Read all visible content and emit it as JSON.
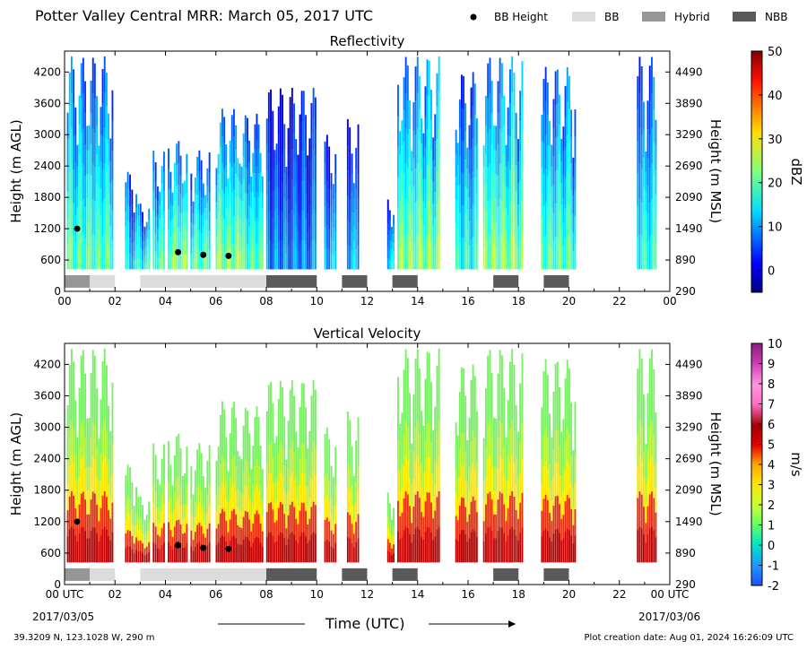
{
  "header": {
    "title": "Potter Valley Central MRR:  March 05, 2017 UTC"
  },
  "legend": {
    "items": [
      {
        "label": "BB Height",
        "kind": "dot",
        "color": "#000000"
      },
      {
        "label": "BB",
        "kind": "box",
        "color": "#dcdcdc"
      },
      {
        "label": "Hybrid",
        "kind": "box",
        "color": "#969696"
      },
      {
        "label": "NBB",
        "kind": "box",
        "color": "#5a5a5a"
      }
    ]
  },
  "footer": {
    "location": "39.3209 N, 123.1028 W, 290 m",
    "created": "Plot creation date: Aug 01, 2024 16:26:09 UTC",
    "xlabel": "Time (UTC)",
    "start_date": "2017/03/05",
    "end_date": "2017/03/06"
  },
  "chart_data": [
    {
      "type": "heatmap",
      "title": "Reflectivity",
      "ylabel": "Height (m AGL)",
      "ylabel_right": "Height (m MSL)",
      "colorbar_label": "dBZ",
      "colorbar_ticks": [
        "0",
        "10",
        "20",
        "30",
        "40",
        "50"
      ],
      "colorbar_range": [
        -5,
        50
      ],
      "x_ticks": [
        "00",
        "02",
        "04",
        "06",
        "08",
        "10",
        "12",
        "14",
        "16",
        "18",
        "20",
        "22",
        "00"
      ],
      "xlim": [
        0,
        24
      ],
      "ylim": [
        0,
        4600
      ],
      "y_ticks_left": [
        "0",
        "600",
        "1200",
        "1800",
        "2400",
        "3000",
        "3600",
        "4200"
      ],
      "y_ticks_right": [
        "290",
        "890",
        "1490",
        "2090",
        "2690",
        "3290",
        "3890",
        "4490"
      ],
      "echo_segments": [
        {
          "start": 0.1,
          "end": 1.95,
          "top": 4500,
          "level": 0.45
        },
        {
          "start": 2.4,
          "end": 2.9,
          "top": 2300,
          "level": 0.35
        },
        {
          "start": 2.9,
          "end": 3.4,
          "top": 1700,
          "level": 0.4
        },
        {
          "start": 3.5,
          "end": 4.0,
          "top": 2700,
          "level": 0.45
        },
        {
          "start": 4.1,
          "end": 4.9,
          "top": 2900,
          "level": 0.5
        },
        {
          "start": 5.0,
          "end": 5.8,
          "top": 2700,
          "level": 0.45
        },
        {
          "start": 6.0,
          "end": 7.0,
          "top": 3500,
          "level": 0.5
        },
        {
          "start": 7.0,
          "end": 7.9,
          "top": 3400,
          "level": 0.45
        },
        {
          "start": 8.0,
          "end": 10.0,
          "top": 3900,
          "level": 0.25
        },
        {
          "start": 10.3,
          "end": 10.8,
          "top": 3000,
          "level": 0.3
        },
        {
          "start": 11.2,
          "end": 11.7,
          "top": 3300,
          "level": 0.3
        },
        {
          "start": 12.8,
          "end": 13.1,
          "top": 1800,
          "level": 0.35
        },
        {
          "start": 13.2,
          "end": 14.9,
          "top": 4500,
          "level": 0.5
        },
        {
          "start": 15.5,
          "end": 16.4,
          "top": 4200,
          "level": 0.4
        },
        {
          "start": 16.6,
          "end": 18.2,
          "top": 4500,
          "level": 0.5
        },
        {
          "start": 18.9,
          "end": 20.3,
          "top": 4300,
          "level": 0.45
        },
        {
          "start": 22.7,
          "end": 23.5,
          "top": 4500,
          "level": 0.4
        }
      ],
      "bb_heights": [
        {
          "x": 0.5,
          "y": 1200
        },
        {
          "x": 4.5,
          "y": 750
        },
        {
          "x": 5.5,
          "y": 700
        },
        {
          "x": 6.5,
          "y": 680
        }
      ],
      "bb_bars": [
        {
          "start": 0.0,
          "end": 1.0,
          "kind": "Hybrid"
        },
        {
          "start": 1.0,
          "end": 2.0,
          "kind": "BB"
        },
        {
          "start": 3.0,
          "end": 8.0,
          "kind": "BB"
        },
        {
          "start": 8.0,
          "end": 10.0,
          "kind": "NBB"
        },
        {
          "start": 11.0,
          "end": 12.0,
          "kind": "NBB"
        },
        {
          "start": 13.0,
          "end": 14.0,
          "kind": "NBB"
        },
        {
          "start": 17.0,
          "end": 18.0,
          "kind": "NBB"
        },
        {
          "start": 19.0,
          "end": 20.0,
          "kind": "NBB"
        }
      ]
    },
    {
      "type": "heatmap",
      "title": "Vertical Velocity",
      "ylabel": "Height (m AGL)",
      "ylabel_right": "Height (m MSL)",
      "colorbar_label": "m/s",
      "colorbar_ticks": [
        "-2",
        "-1",
        "0",
        "1",
        "2",
        "3",
        "4",
        "5",
        "6",
        "7",
        "8",
        "9",
        "10"
      ],
      "colorbar_range": [
        -2,
        10
      ],
      "x_ticks": [
        "00 UTC",
        "02",
        "04",
        "06",
        "08",
        "10",
        "12",
        "14",
        "16",
        "18",
        "20",
        "22",
        "00 UTC"
      ],
      "xlim": [
        0,
        24
      ],
      "ylim": [
        0,
        4600
      ],
      "y_ticks_left": [
        "0",
        "600",
        "1200",
        "1800",
        "2400",
        "3000",
        "3600",
        "4200"
      ],
      "y_ticks_right": [
        "290",
        "890",
        "1490",
        "2090",
        "2690",
        "3290",
        "3890",
        "4490"
      ],
      "echo_segments": [
        {
          "start": 0.1,
          "end": 1.95,
          "top": 4500,
          "level": 0.3
        },
        {
          "start": 2.4,
          "end": 2.9,
          "top": 2300,
          "level": 0.3
        },
        {
          "start": 2.9,
          "end": 3.4,
          "top": 1700,
          "level": 0.3
        },
        {
          "start": 3.5,
          "end": 4.0,
          "top": 2700,
          "level": 0.3
        },
        {
          "start": 4.1,
          "end": 4.9,
          "top": 2900,
          "level": 0.3
        },
        {
          "start": 5.0,
          "end": 5.8,
          "top": 2700,
          "level": 0.3
        },
        {
          "start": 6.0,
          "end": 7.0,
          "top": 3500,
          "level": 0.3
        },
        {
          "start": 7.0,
          "end": 7.9,
          "top": 3400,
          "level": 0.28
        },
        {
          "start": 8.0,
          "end": 10.0,
          "top": 3900,
          "level": 0.22
        },
        {
          "start": 10.3,
          "end": 10.8,
          "top": 3000,
          "level": 0.25
        },
        {
          "start": 11.2,
          "end": 11.7,
          "top": 3300,
          "level": 0.25
        },
        {
          "start": 12.8,
          "end": 13.1,
          "top": 1800,
          "level": 0.28
        },
        {
          "start": 13.2,
          "end": 14.9,
          "top": 4500,
          "level": 0.3
        },
        {
          "start": 15.5,
          "end": 16.4,
          "top": 4200,
          "level": 0.3
        },
        {
          "start": 16.6,
          "end": 18.2,
          "top": 4500,
          "level": 0.3
        },
        {
          "start": 18.9,
          "end": 20.3,
          "top": 4300,
          "level": 0.3
        },
        {
          "start": 22.7,
          "end": 23.5,
          "top": 4500,
          "level": 0.3
        }
      ],
      "bb_heights": [
        {
          "x": 0.5,
          "y": 1200
        },
        {
          "x": 4.5,
          "y": 750
        },
        {
          "x": 5.5,
          "y": 700
        },
        {
          "x": 6.5,
          "y": 680
        }
      ],
      "bb_bars": [
        {
          "start": 0.0,
          "end": 1.0,
          "kind": "Hybrid"
        },
        {
          "start": 1.0,
          "end": 2.0,
          "kind": "BB"
        },
        {
          "start": 3.0,
          "end": 8.0,
          "kind": "BB"
        },
        {
          "start": 8.0,
          "end": 10.0,
          "kind": "NBB"
        },
        {
          "start": 11.0,
          "end": 12.0,
          "kind": "NBB"
        },
        {
          "start": 13.0,
          "end": 14.0,
          "kind": "NBB"
        },
        {
          "start": 17.0,
          "end": 18.0,
          "kind": "NBB"
        },
        {
          "start": 19.0,
          "end": 20.0,
          "kind": "NBB"
        }
      ]
    }
  ]
}
